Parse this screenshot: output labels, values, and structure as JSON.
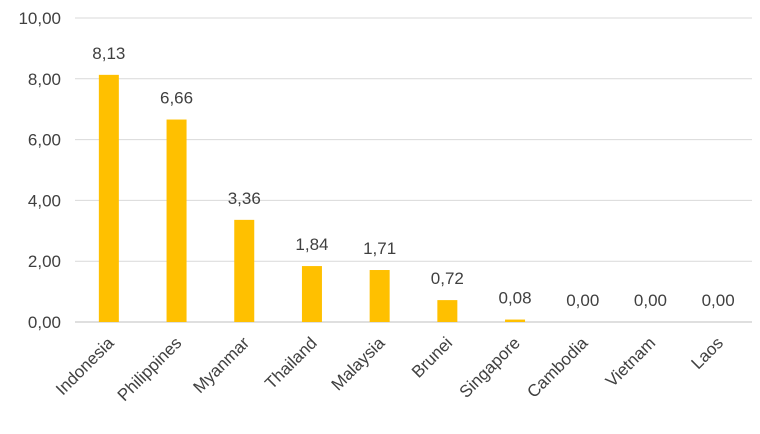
{
  "chart_data": {
    "type": "bar",
    "title": "",
    "xlabel": "",
    "ylabel": "",
    "categories": [
      "Indonesia",
      "Philippines",
      "Myanmar",
      "Thailand",
      "Malaysia",
      "Brunei",
      "Singapore",
      "Cambodia",
      "Vietnam",
      "Laos"
    ],
    "values": [
      8.13,
      6.66,
      3.36,
      1.84,
      1.71,
      0.72,
      0.08,
      0.0,
      0.0,
      0.0
    ],
    "data_labels": [
      "8,13",
      "6,66",
      "3,36",
      "1,84",
      "1,71",
      "0,72",
      "0,08",
      "0,00",
      "0,00",
      "0,00"
    ],
    "ylim": [
      0,
      10
    ],
    "yticks": [
      0,
      2,
      4,
      6,
      8,
      10
    ],
    "ytick_labels": [
      "0,00",
      "2,00",
      "4,00",
      "6,00",
      "8,00",
      "10,00"
    ],
    "grid": true,
    "legend": "none",
    "bar_color": "#FFC000"
  }
}
